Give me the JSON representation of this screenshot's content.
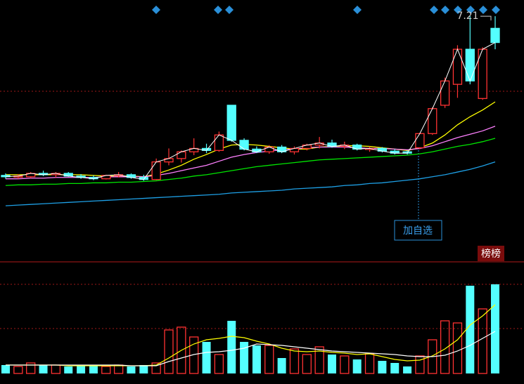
{
  "chart_data": {
    "type": "candlestick",
    "ylim": [
      3.6,
      7.45
    ],
    "open": [
      4.85,
      4.83,
      4.83,
      4.88,
      4.86,
      4.88,
      4.84,
      4.82,
      4.8,
      4.85,
      4.86,
      4.82,
      4.79,
      5.05,
      5.1,
      5.2,
      5.25,
      5.22,
      5.89,
      5.37,
      5.24,
      5.2,
      5.27,
      5.2,
      5.25,
      5.3,
      5.33,
      5.28,
      5.3,
      5.24,
      5.25,
      5.21,
      5.2,
      5.26,
      5.47,
      5.89,
      6.2,
      6.72,
      5.99,
      7.03
    ],
    "high": [
      4.88,
      4.87,
      4.9,
      4.92,
      4.9,
      4.9,
      4.87,
      4.85,
      4.86,
      4.9,
      4.88,
      4.86,
      5.1,
      5.25,
      5.22,
      5.4,
      5.32,
      5.5,
      5.89,
      5.4,
      5.28,
      5.3,
      5.3,
      5.28,
      5.32,
      5.42,
      5.38,
      5.35,
      5.32,
      5.28,
      5.27,
      5.24,
      5.22,
      5.48,
      5.86,
      6.3,
      6.78,
      7.21,
      6.75,
      7.21
    ],
    "low": [
      4.8,
      4.8,
      4.81,
      4.84,
      4.82,
      4.83,
      4.8,
      4.78,
      4.79,
      4.82,
      4.8,
      4.77,
      4.78,
      5.0,
      5.04,
      5.15,
      5.18,
      5.2,
      5.35,
      5.22,
      5.18,
      5.17,
      5.18,
      5.16,
      5.22,
      5.25,
      5.26,
      5.24,
      5.22,
      5.2,
      5.19,
      5.16,
      5.16,
      5.24,
      5.45,
      5.85,
      6.0,
      6.2,
      5.97,
      6.72
    ],
    "close": [
      4.83,
      4.84,
      4.88,
      4.86,
      4.88,
      4.84,
      4.82,
      4.8,
      4.85,
      4.86,
      4.82,
      4.79,
      5.05,
      5.1,
      5.2,
      5.25,
      5.22,
      5.45,
      5.37,
      5.24,
      5.2,
      5.27,
      5.2,
      5.25,
      5.3,
      5.33,
      5.28,
      5.3,
      5.24,
      5.25,
      5.21,
      5.18,
      5.18,
      5.47,
      5.84,
      6.25,
      6.72,
      6.25,
      6.72,
      6.82
    ],
    "up_color": "#ff3232",
    "down_color": "#54ffff",
    "close_line_color": "#ffffff",
    "moving_averages": [
      {
        "color": "#ffff00",
        "values": [
          4.86,
          4.86,
          4.86,
          4.86,
          4.86,
          4.86,
          4.86,
          4.85,
          4.84,
          4.84,
          4.84,
          4.83,
          4.87,
          4.93,
          5.0,
          5.09,
          5.16,
          5.24,
          5.3,
          5.31,
          5.3,
          5.28,
          5.26,
          5.24,
          5.24,
          5.27,
          5.28,
          5.29,
          5.29,
          5.28,
          5.26,
          5.24,
          5.22,
          5.26,
          5.33,
          5.45,
          5.6,
          5.72,
          5.82,
          5.94
        ]
      },
      {
        "color": "#ff80ff",
        "values": [
          4.8,
          4.8,
          4.81,
          4.81,
          4.82,
          4.82,
          4.82,
          4.82,
          4.83,
          4.83,
          4.83,
          4.83,
          4.85,
          4.88,
          4.92,
          4.96,
          5.0,
          5.06,
          5.12,
          5.16,
          5.19,
          5.21,
          5.23,
          5.24,
          5.26,
          5.27,
          5.27,
          5.27,
          5.26,
          5.25,
          5.25,
          5.24,
          5.23,
          5.25,
          5.29,
          5.35,
          5.41,
          5.46,
          5.51,
          5.58
        ]
      },
      {
        "color": "#00e600",
        "values": [
          4.7,
          4.71,
          4.71,
          4.72,
          4.72,
          4.73,
          4.73,
          4.74,
          4.74,
          4.75,
          4.75,
          4.76,
          4.77,
          4.79,
          4.81,
          4.84,
          4.86,
          4.89,
          4.92,
          4.95,
          4.98,
          5.0,
          5.02,
          5.04,
          5.06,
          5.08,
          5.09,
          5.1,
          5.11,
          5.12,
          5.13,
          5.14,
          5.15,
          5.17,
          5.2,
          5.24,
          5.28,
          5.31,
          5.35,
          5.4
        ]
      },
      {
        "color": "#1ea0e6",
        "values": [
          4.4,
          4.41,
          4.42,
          4.43,
          4.44,
          4.45,
          4.46,
          4.47,
          4.48,
          4.49,
          4.5,
          4.51,
          4.52,
          4.53,
          4.54,
          4.55,
          4.56,
          4.57,
          4.59,
          4.6,
          4.61,
          4.62,
          4.63,
          4.65,
          4.66,
          4.67,
          4.68,
          4.7,
          4.71,
          4.73,
          4.74,
          4.76,
          4.78,
          4.8,
          4.83,
          4.86,
          4.9,
          4.94,
          4.99,
          5.05
        ]
      }
    ],
    "high_annotation": 7.21,
    "volume": {
      "ylim": [
        0,
        137
      ],
      "values": [
        12,
        10,
        15,
        12,
        12,
        10,
        12,
        12,
        10,
        12,
        10,
        12,
        15,
        62,
        66,
        52,
        45,
        27,
        75,
        45,
        40,
        40,
        22,
        35,
        27,
        38,
        27,
        25,
        20,
        28,
        18,
        15,
        10,
        25,
        48,
        75,
        72,
        125,
        92,
        127
      ],
      "moving_averages": [
        {
          "color": "#ffff00",
          "values": [
            12,
            12,
            12,
            12,
            12,
            11,
            11,
            11,
            11,
            11,
            11,
            11,
            12,
            22,
            33,
            42,
            48,
            50,
            53,
            51,
            46,
            42,
            36,
            32,
            31,
            32,
            30,
            29,
            27,
            28,
            24,
            20,
            18,
            19,
            25,
            35,
            48,
            69,
            82,
            98
          ]
        },
        {
          "color": "#ffffff",
          "values": [
            12,
            12,
            12,
            12,
            12,
            12,
            12,
            12,
            12,
            12,
            11,
            11,
            11,
            17,
            22,
            27,
            30,
            31,
            33,
            36,
            42,
            41,
            40,
            38,
            36,
            34,
            32,
            31,
            30,
            29,
            28,
            27,
            25,
            24,
            24,
            26,
            32,
            40,
            50,
            60
          ]
        }
      ]
    },
    "add_watchlist_button": "加自选",
    "rank_badge": "榜榜"
  }
}
